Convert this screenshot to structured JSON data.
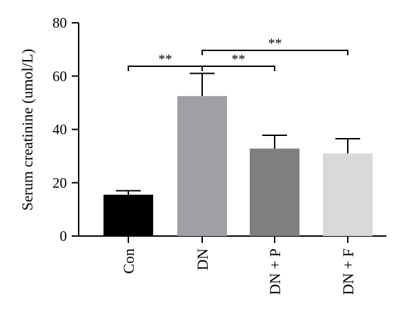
{
  "chart_data": {
    "type": "bar",
    "categories": [
      "Con",
      "DN",
      "DN + P",
      "DN + F"
    ],
    "values": [
      15.5,
      52.5,
      32.8,
      31.0
    ],
    "errors": [
      1.5,
      8.5,
      5.0,
      5.5
    ],
    "colors": [
      "#000000",
      "#a0a0a4",
      "#7f7f7f",
      "#d9d9d9"
    ],
    "ylabel": "Serum creatinine (umol/L)",
    "xlabel": "",
    "ylim": [
      0,
      80
    ],
    "yticks": [
      0,
      20,
      40,
      60,
      80
    ],
    "grid": false,
    "significance": [
      {
        "from": "Con",
        "to": "DN",
        "label": "**"
      },
      {
        "from": "DN",
        "to": "DN + P",
        "label": "**"
      },
      {
        "from": "DN",
        "to": "DN + F",
        "label": "**"
      }
    ]
  }
}
